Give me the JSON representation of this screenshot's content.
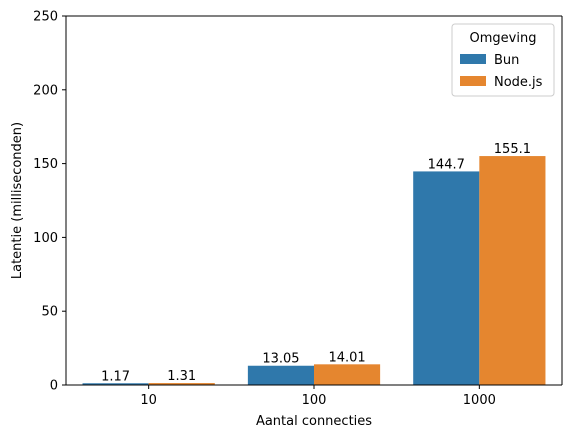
{
  "chart_data": {
    "type": "bar",
    "categories": [
      "10",
      "100",
      "1000"
    ],
    "series": [
      {
        "name": "Bun",
        "values": [
          1.17,
          13.05,
          144.7
        ],
        "labels": [
          "1.17",
          "13.05",
          "144.7"
        ],
        "color": "#2f78ab"
      },
      {
        "name": "Node.js",
        "values": [
          1.31,
          14.01,
          155.1
        ],
        "labels": [
          "1.31",
          "14.01",
          "155.1"
        ],
        "color": "#e5862f"
      }
    ],
    "title": "",
    "xlabel": "Aantal connecties",
    "ylabel": "Latentie (milliseconden)",
    "ylim": [
      0,
      250
    ],
    "yticks": [
      "0",
      "50",
      "100",
      "150",
      "200",
      "250"
    ],
    "legend": {
      "title": "Omgeving",
      "placement": "top-right"
    },
    "grid": false
  }
}
